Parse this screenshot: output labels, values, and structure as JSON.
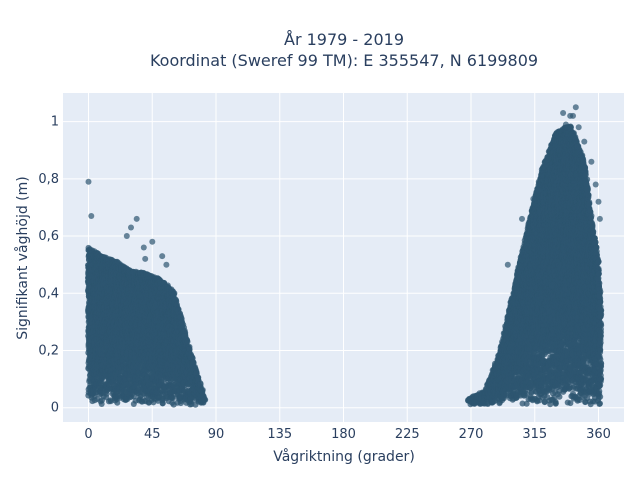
{
  "chart_data": {
    "type": "scatter",
    "title": "År 1979 - 2019",
    "subtitle": "Koordinat (Sweref 99 TM): E 355547, N 6199809",
    "xlabel": "Vågriktning (grader)",
    "ylabel": "Signifikant våghöjd (m)",
    "xlim": [
      -18,
      378
    ],
    "ylim": [
      -0.05,
      1.1
    ],
    "x_ticks": [
      0,
      45,
      90,
      135,
      180,
      225,
      270,
      315,
      360
    ],
    "y_ticks": [
      0,
      0.2,
      0.4,
      0.6,
      0.8,
      1
    ],
    "y_tick_labels": [
      "0",
      "0,2",
      "0,4",
      "0,6",
      "0,8",
      "1"
    ],
    "grid": true,
    "colors": {
      "marker": "#2e5570",
      "plot_bg": "#e5ecf6",
      "grid": "#ffffff",
      "text": "#2a3f5f"
    },
    "clusters": [
      {
        "x_range": [
          0,
          82
        ],
        "envelope": [
          [
            0,
            0.55
          ],
          [
            10,
            0.52
          ],
          [
            20,
            0.5
          ],
          [
            30,
            0.47
          ],
          [
            40,
            0.46
          ],
          [
            50,
            0.44
          ],
          [
            60,
            0.4
          ],
          [
            70,
            0.22
          ],
          [
            76,
            0.12
          ],
          [
            80,
            0.06
          ],
          [
            82,
            0.02
          ]
        ]
      },
      {
        "x_range": [
          268,
          362
        ],
        "envelope": [
          [
            268,
            0.02
          ],
          [
            280,
            0.05
          ],
          [
            290,
            0.18
          ],
          [
            300,
            0.4
          ],
          [
            310,
            0.62
          ],
          [
            320,
            0.82
          ],
          [
            330,
            0.95
          ],
          [
            340,
            0.98
          ],
          [
            350,
            0.85
          ],
          [
            356,
            0.62
          ],
          [
            360,
            0.5
          ],
          [
            362,
            0.3
          ]
        ]
      }
    ],
    "outliers": [
      [
        0,
        0.79
      ],
      [
        2,
        0.67
      ],
      [
        27,
        0.6
      ],
      [
        30,
        0.63
      ],
      [
        34,
        0.66
      ],
      [
        39,
        0.56
      ],
      [
        40,
        0.52
      ],
      [
        45,
        0.58
      ],
      [
        52,
        0.53
      ],
      [
        55,
        0.5
      ],
      [
        335,
        1.03
      ],
      [
        337,
        0.99
      ],
      [
        340,
        1.02
      ],
      [
        342,
        1.02
      ],
      [
        344,
        1.05
      ],
      [
        346,
        0.98
      ],
      [
        350,
        0.93
      ],
      [
        355,
        0.86
      ],
      [
        358,
        0.78
      ],
      [
        360,
        0.72
      ],
      [
        361,
        0.66
      ],
      [
        318,
        0.76
      ],
      [
        314,
        0.73
      ],
      [
        306,
        0.66
      ],
      [
        296,
        0.5
      ]
    ]
  }
}
